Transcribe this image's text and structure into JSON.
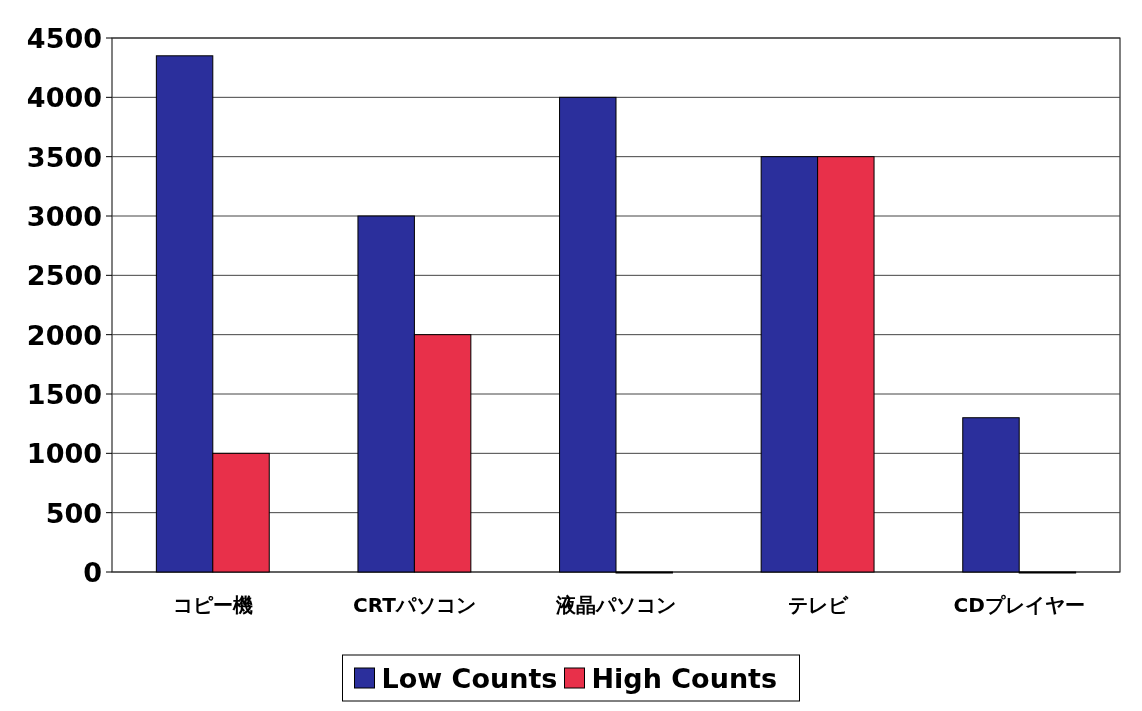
{
  "chart_data": {
    "type": "bar",
    "categories": [
      "コピー機",
      "CRTパソコン",
      "液晶パソコン",
      "テレビ",
      "CDプレイヤー"
    ],
    "series": [
      {
        "name": "Low Counts",
        "color": "#2b2f9c",
        "values": [
          4350,
          3000,
          4000,
          3500,
          1300
        ]
      },
      {
        "name": "High Counts",
        "color": "#e8304a",
        "values": [
          1000,
          2000,
          0,
          3500,
          0
        ]
      }
    ],
    "ylim": [
      0,
      4500
    ],
    "yticks": [
      0,
      500,
      1000,
      1500,
      2000,
      2500,
      3000,
      3500,
      4000,
      4500
    ],
    "grid": "y",
    "legend": "bottom"
  }
}
